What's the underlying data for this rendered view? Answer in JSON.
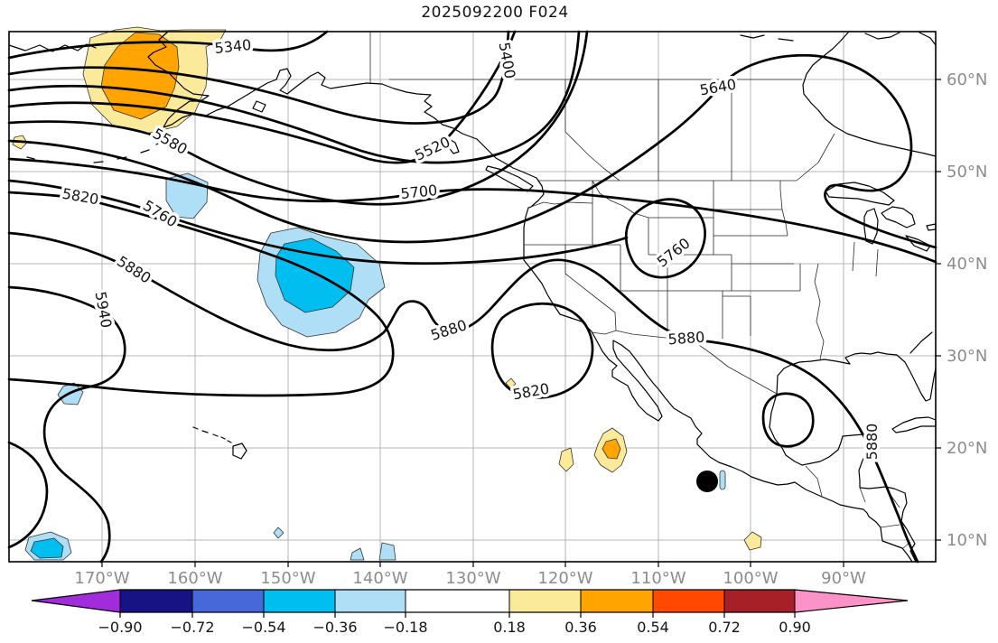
{
  "title": "2025092200 F024",
  "axes": {
    "lon_labels": [
      "170°W",
      "160°W",
      "150°W",
      "140°W",
      "130°W",
      "120°W",
      "110°W",
      "100°W",
      "90°W"
    ],
    "lat_labels": [
      "60°N",
      "50°N",
      "40°N",
      "30°N",
      "20°N",
      "10°N"
    ]
  },
  "colorbar": {
    "tick_labels": [
      "−0.90",
      "−0.72",
      "−0.54",
      "−0.36",
      "−0.18",
      "0.18",
      "0.36",
      "0.54",
      "0.72",
      "0.90"
    ],
    "colors": [
      "#a02cdc",
      "#171385",
      "#4668d8",
      "#00bef0",
      "#aedff7",
      "#ffffff",
      "#fbea9a",
      "#ffa400",
      "#ff4800",
      "#a62028",
      "#fb93c8"
    ]
  },
  "contour_labels": [
    "5340",
    "5400",
    "5520",
    "5580",
    "5640",
    "5700",
    "5760",
    "5760",
    "5820",
    "5820",
    "5880",
    "5880",
    "5880",
    "5880",
    "5940"
  ],
  "chart_data": {
    "type": "contour-map",
    "title": "2025092200 F024",
    "field": "geopotential height contours (m) with standardized anomaly shading",
    "extent": {
      "lon_min": "180°W",
      "lon_max": "80°W",
      "lat_min": "8°N",
      "lat_max": "65°N"
    },
    "grid": {
      "lon_ticks": [
        "170°W",
        "160°W",
        "150°W",
        "140°W",
        "130°W",
        "120°W",
        "110°W",
        "100°W",
        "90°W"
      ],
      "lat_ticks": [
        "60°N",
        "50°N",
        "40°N",
        "30°N",
        "20°N",
        "10°N"
      ],
      "grid_on": true
    },
    "contour_interval": 60,
    "labeled_contour_levels": [
      5340,
      5400,
      5520,
      5580,
      5640,
      5700,
      5760,
      5820,
      5880,
      5940
    ],
    "colorbar": {
      "ticks": [
        -0.9,
        -0.72,
        -0.54,
        -0.36,
        -0.18,
        0.18,
        0.36,
        0.54,
        0.72,
        0.9
      ],
      "colors": [
        "#a02cdc",
        "#171385",
        "#4668d8",
        "#00bef0",
        "#aedff7",
        "#ffffff",
        "#fbea9a",
        "#ffa400",
        "#ff4800",
        "#a62028",
        "#fb93c8"
      ],
      "orientation": "horizontal",
      "extended_arrows": true
    },
    "shaded_anomalies": [
      {
        "region": "Alaska / Bering Sea ~58°N 165°W",
        "sign": "positive",
        "max_bin": "0.36 to 0.54"
      },
      {
        "region": "North Pacific ~40°N 150°W",
        "sign": "negative",
        "max_bin": "-0.36 to -0.54"
      },
      {
        "region": "near Aleutians ~47°N 162°W",
        "sign": "negative",
        "max_bin": "-0.18 to -0.36"
      },
      {
        "region": "SW of Baja California ~18°N 114°W",
        "sign": "positive",
        "max_bin": "0.36 to 0.54"
      },
      {
        "region": "offshore S Mexico ~10°N 100°W",
        "sign": "positive",
        "max_bin": "0.18 to 0.36"
      },
      {
        "region": "SW corner ~8°N 176°W",
        "sign": "negative",
        "max_bin": "-0.36 to -0.54"
      },
      {
        "region": "~32°N 172°W",
        "sign": "negative",
        "max_bin": "-0.18 to -0.36"
      }
    ],
    "markers": [
      {
        "type": "storm-position-dot",
        "approx_lat": "16.5°N",
        "approx_lon": "105°W"
      }
    ]
  }
}
